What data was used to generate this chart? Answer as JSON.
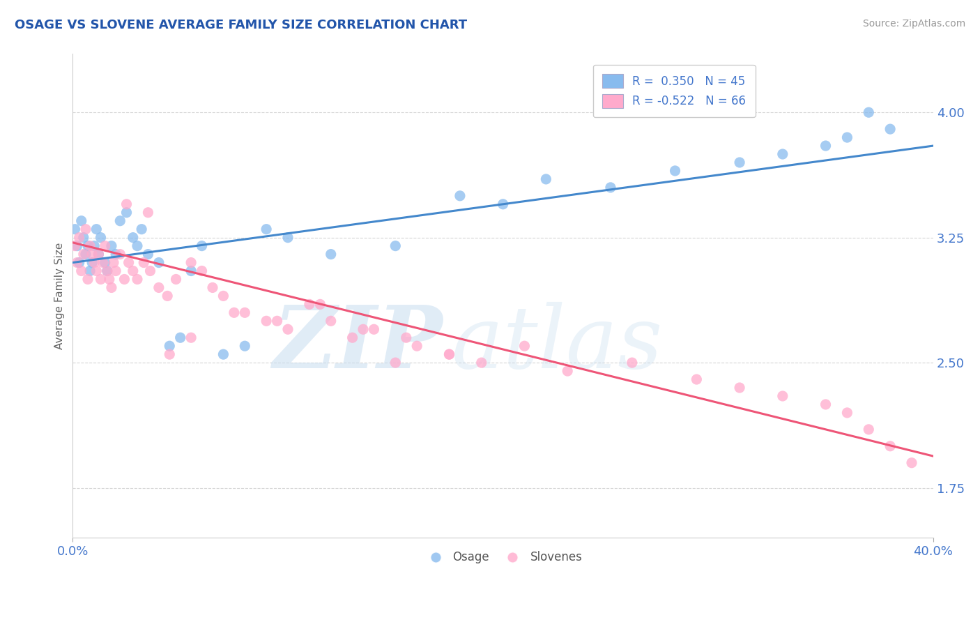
{
  "title": "OSAGE VS SLOVENE AVERAGE FAMILY SIZE CORRELATION CHART",
  "source_text": "Source: ZipAtlas.com",
  "ylabel": "Average Family Size",
  "watermark_zip": "ZIP",
  "watermark_atlas": "atlas",
  "xlim": [
    0.0,
    0.4
  ],
  "ylim": [
    1.45,
    4.35
  ],
  "yticks": [
    1.75,
    2.5,
    3.25,
    4.0
  ],
  "xticks": [
    0.0,
    0.4
  ],
  "xticklabels": [
    "0.0%",
    "40.0%"
  ],
  "title_color": "#2255aa",
  "axis_color": "#4477cc",
  "grid_color": "#bbbbbb",
  "osage_color": "#88bbee",
  "slovene_color": "#ffaacc",
  "line_osage_color": "#4488cc",
  "line_slovene_color": "#ee5577",
  "legend_osage": "R =  0.350   N = 45",
  "legend_slovene": "R = -0.522   N = 66",
  "osage_intercept": 3.1,
  "osage_slope": 1.75,
  "slovene_intercept": 3.22,
  "slovene_slope": -3.2,
  "osage_points_x": [
    0.001,
    0.002,
    0.003,
    0.004,
    0.005,
    0.006,
    0.007,
    0.008,
    0.009,
    0.01,
    0.011,
    0.012,
    0.013,
    0.015,
    0.016,
    0.018,
    0.02,
    0.022,
    0.025,
    0.028,
    0.03,
    0.032,
    0.035,
    0.04,
    0.045,
    0.05,
    0.055,
    0.06,
    0.07,
    0.08,
    0.09,
    0.1,
    0.12,
    0.15,
    0.18,
    0.2,
    0.22,
    0.25,
    0.28,
    0.31,
    0.33,
    0.35,
    0.36,
    0.37,
    0.38
  ],
  "osage_points_y": [
    3.3,
    3.2,
    3.1,
    3.35,
    3.25,
    3.15,
    3.2,
    3.05,
    3.1,
    3.2,
    3.3,
    3.15,
    3.25,
    3.1,
    3.05,
    3.2,
    3.15,
    3.35,
    3.4,
    3.25,
    3.2,
    3.3,
    3.15,
    3.1,
    2.6,
    2.65,
    3.05,
    3.2,
    2.55,
    2.6,
    3.3,
    3.25,
    3.15,
    3.2,
    3.5,
    3.45,
    3.6,
    3.55,
    3.65,
    3.7,
    3.75,
    3.8,
    3.85,
    4.0,
    3.9
  ],
  "slovene_points_x": [
    0.001,
    0.002,
    0.003,
    0.004,
    0.005,
    0.006,
    0.007,
    0.008,
    0.009,
    0.01,
    0.011,
    0.012,
    0.013,
    0.014,
    0.015,
    0.016,
    0.017,
    0.018,
    0.019,
    0.02,
    0.022,
    0.024,
    0.026,
    0.028,
    0.03,
    0.033,
    0.036,
    0.04,
    0.044,
    0.048,
    0.055,
    0.06,
    0.065,
    0.07,
    0.08,
    0.09,
    0.1,
    0.11,
    0.12,
    0.13,
    0.14,
    0.15,
    0.16,
    0.175,
    0.19,
    0.21,
    0.23,
    0.26,
    0.29,
    0.31,
    0.33,
    0.35,
    0.36,
    0.37,
    0.38,
    0.39,
    0.025,
    0.035,
    0.045,
    0.055,
    0.075,
    0.095,
    0.115,
    0.135,
    0.155,
    0.175
  ],
  "slovene_points_y": [
    3.2,
    3.1,
    3.25,
    3.05,
    3.15,
    3.3,
    3.0,
    3.2,
    3.15,
    3.1,
    3.05,
    3.15,
    3.0,
    3.1,
    3.2,
    3.05,
    3.0,
    2.95,
    3.1,
    3.05,
    3.15,
    3.0,
    3.1,
    3.05,
    3.0,
    3.1,
    3.05,
    2.95,
    2.9,
    3.0,
    3.1,
    3.05,
    2.95,
    2.9,
    2.8,
    2.75,
    2.7,
    2.85,
    2.75,
    2.65,
    2.7,
    2.5,
    2.6,
    2.55,
    2.5,
    2.6,
    2.45,
    2.5,
    2.4,
    2.35,
    2.3,
    2.25,
    2.2,
    2.1,
    2.0,
    1.9,
    3.45,
    3.4,
    2.55,
    2.65,
    2.8,
    2.75,
    2.85,
    2.7,
    2.65,
    2.55
  ]
}
